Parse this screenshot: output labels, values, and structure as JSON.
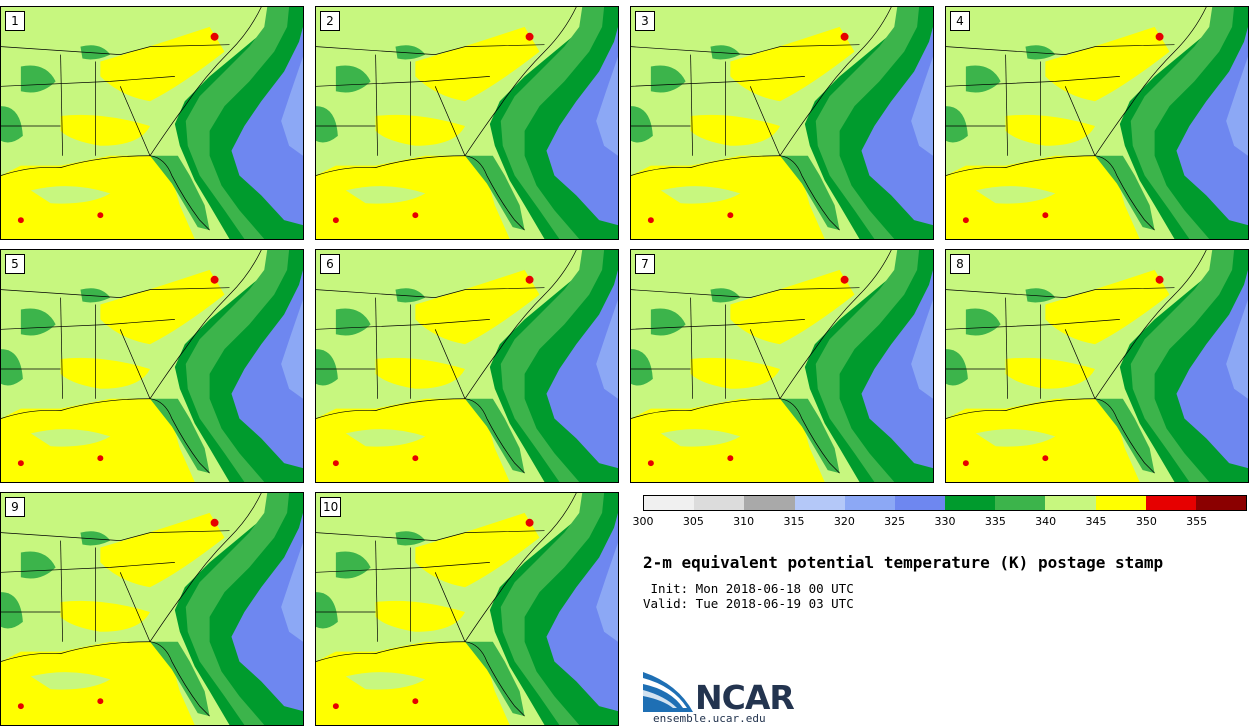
{
  "panels": [
    {
      "label": "1"
    },
    {
      "label": "2"
    },
    {
      "label": "3"
    },
    {
      "label": "4"
    },
    {
      "label": "5"
    },
    {
      "label": "6"
    },
    {
      "label": "7"
    },
    {
      "label": "8"
    },
    {
      "label": "9"
    },
    {
      "label": "10"
    }
  ],
  "colorbar": {
    "levels": [
      "300",
      "305",
      "310",
      "315",
      "320",
      "325",
      "330",
      "335",
      "340",
      "345",
      "350",
      "355"
    ],
    "colors": [
      "#f0f0f0",
      "#dcdcdc",
      "#a9a9a9",
      "#b4c8f8",
      "#8ca8f5",
      "#6e87f0",
      "#009b2d",
      "#3cb44b",
      "#c7f77f",
      "#ffff00",
      "#e60000",
      "#8b0000"
    ]
  },
  "title": "2-m equivalent potential temperature (K) postage stamp",
  "init": " Init: Mon 2018-06-18 00 UTC",
  "valid": "Valid: Tue 2018-06-19 03 UTC",
  "logo": {
    "name": "NCAR",
    "url": "ensemble.ucar.edu"
  }
}
